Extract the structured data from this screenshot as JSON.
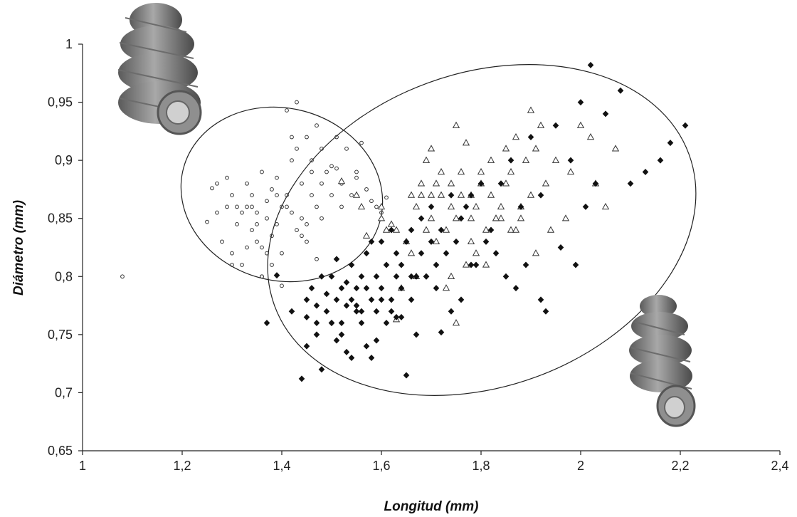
{
  "chart_data": {
    "type": "scatter",
    "title": "",
    "xlabel": "Longitud (mm)",
    "ylabel": "Diámetro (mm)",
    "xlim": [
      1,
      2.4
    ],
    "ylim": [
      0.65,
      1.0
    ],
    "xticks": [
      "1",
      "1,2",
      "1,4",
      "1,6",
      "1,8",
      "2",
      "2,2",
      "2,4"
    ],
    "yticks": [
      "0,65",
      "0,7",
      "0,75",
      "0,8",
      "0,85",
      "0,9",
      "0,95",
      "1"
    ],
    "grid": false,
    "legend": "none",
    "decorations": [
      "snail-shell-photo-top-left",
      "snail-shell-photo-bottom-right"
    ],
    "marker_colors": {
      "circle": "#333333",
      "triangle": "#333333",
      "diamond": "#111111"
    },
    "series": [
      {
        "marker": "circle",
        "x": [
          1.08,
          1.25,
          1.26,
          1.27,
          1.28,
          1.29,
          1.3,
          1.3,
          1.31,
          1.32,
          1.33,
          1.33,
          1.34,
          1.34,
          1.35,
          1.35,
          1.36,
          1.36,
          1.37,
          1.37,
          1.38,
          1.38,
          1.39,
          1.39,
          1.4,
          1.4,
          1.41,
          1.41,
          1.42,
          1.42,
          1.43,
          1.43,
          1.44,
          1.44,
          1.45,
          1.45,
          1.46,
          1.46,
          1.47,
          1.47,
          1.48,
          1.48,
          1.49,
          1.5,
          1.5,
          1.51,
          1.51,
          1.52,
          1.53,
          1.54,
          1.55,
          1.56,
          1.57,
          1.58,
          1.59,
          1.6,
          1.61,
          1.3,
          1.33,
          1.36,
          1.39,
          1.42,
          1.45,
          1.48,
          1.27,
          1.32,
          1.37,
          1.43,
          1.46,
          1.4,
          1.34,
          1.41,
          1.38,
          1.44,
          1.36,
          1.31,
          1.29,
          1.35,
          1.47,
          1.52,
          1.55
        ],
        "y": [
          0.8,
          0.847,
          0.876,
          0.855,
          0.83,
          0.86,
          0.82,
          0.87,
          0.845,
          0.81,
          0.86,
          0.88,
          0.84,
          0.87,
          0.855,
          0.83,
          0.89,
          0.825,
          0.865,
          0.85,
          0.875,
          0.835,
          0.845,
          0.885,
          0.86,
          0.82,
          0.943,
          0.87,
          0.855,
          0.9,
          0.91,
          0.84,
          0.88,
          0.85,
          0.845,
          0.92,
          0.87,
          0.9,
          0.86,
          0.93,
          0.88,
          0.91,
          0.89,
          0.895,
          0.87,
          0.92,
          0.893,
          0.86,
          0.91,
          0.87,
          0.885,
          0.915,
          0.875,
          0.865,
          0.86,
          0.855,
          0.868,
          0.81,
          0.825,
          0.8,
          0.87,
          0.92,
          0.83,
          0.85,
          0.88,
          0.855,
          0.82,
          0.95,
          0.89,
          0.792,
          0.86,
          0.86,
          0.81,
          0.835,
          0.8,
          0.86,
          0.885,
          0.845,
          0.815,
          0.88,
          0.89
        ]
      },
      {
        "marker": "triangle",
        "x": [
          1.52,
          1.55,
          1.57,
          1.6,
          1.6,
          1.62,
          1.63,
          1.65,
          1.66,
          1.67,
          1.68,
          1.69,
          1.7,
          1.7,
          1.71,
          1.72,
          1.72,
          1.73,
          1.74,
          1.74,
          1.75,
          1.75,
          1.76,
          1.76,
          1.77,
          1.78,
          1.78,
          1.79,
          1.8,
          1.8,
          1.81,
          1.82,
          1.82,
          1.83,
          1.84,
          1.85,
          1.85,
          1.86,
          1.86,
          1.87,
          1.88,
          1.88,
          1.89,
          1.9,
          1.9,
          1.91,
          1.92,
          1.93,
          1.94,
          1.95,
          1.97,
          1.98,
          2.0,
          2.02,
          2.03,
          2.05,
          2.07,
          1.56,
          1.64,
          1.69,
          1.73,
          1.78,
          1.81,
          1.84,
          1.87,
          1.91,
          1.63,
          1.67,
          1.71,
          1.75,
          1.79,
          1.83,
          1.7,
          1.66,
          1.74,
          1.77,
          1.61,
          1.68
        ],
        "y": [
          0.882,
          0.87,
          0.835,
          0.86,
          0.85,
          0.845,
          0.84,
          0.83,
          0.87,
          0.86,
          0.88,
          0.9,
          0.91,
          0.85,
          0.88,
          0.87,
          0.89,
          0.84,
          0.86,
          0.88,
          0.93,
          0.85,
          0.87,
          0.89,
          0.915,
          0.87,
          0.85,
          0.86,
          0.89,
          0.88,
          0.84,
          0.87,
          0.9,
          0.85,
          0.86,
          0.88,
          0.91,
          0.84,
          0.89,
          0.92,
          0.86,
          0.85,
          0.9,
          0.87,
          0.943,
          0.91,
          0.93,
          0.88,
          0.84,
          0.9,
          0.85,
          0.89,
          0.93,
          0.92,
          0.88,
          0.86,
          0.91,
          0.86,
          0.79,
          0.84,
          0.79,
          0.83,
          0.81,
          0.85,
          0.84,
          0.82,
          0.763,
          0.8,
          0.83,
          0.76,
          0.82,
          0.85,
          0.87,
          0.82,
          0.8,
          0.81,
          0.84,
          0.87
        ]
      },
      {
        "marker": "diamond",
        "x": [
          1.37,
          1.39,
          1.42,
          1.44,
          1.45,
          1.45,
          1.46,
          1.47,
          1.47,
          1.48,
          1.49,
          1.49,
          1.5,
          1.5,
          1.51,
          1.51,
          1.52,
          1.52,
          1.53,
          1.53,
          1.54,
          1.54,
          1.55,
          1.55,
          1.56,
          1.56,
          1.57,
          1.57,
          1.58,
          1.58,
          1.59,
          1.59,
          1.6,
          1.6,
          1.61,
          1.62,
          1.62,
          1.63,
          1.63,
          1.64,
          1.64,
          1.65,
          1.66,
          1.66,
          1.67,
          1.68,
          1.68,
          1.69,
          1.7,
          1.7,
          1.71,
          1.72,
          1.73,
          1.74,
          1.75,
          1.76,
          1.77,
          1.78,
          1.8,
          1.82,
          1.84,
          1.86,
          1.88,
          1.9,
          1.92,
          1.95,
          1.98,
          2.0,
          2.02,
          2.05,
          2.08,
          2.1,
          2.13,
          2.16,
          2.18,
          2.21,
          1.45,
          1.48,
          1.52,
          1.57,
          1.61,
          1.65,
          1.72,
          1.78,
          1.85,
          1.92,
          1.55,
          1.58,
          1.63,
          1.67,
          1.74,
          1.81,
          1.87,
          1.93,
          1.99,
          2.03,
          1.5,
          1.53,
          1.56,
          1.6,
          1.64,
          1.69,
          1.76,
          1.83,
          1.89,
          1.96,
          2.01,
          1.47,
          1.51,
          1.54,
          1.59,
          1.62,
          1.66,
          1.71,
          1.79
        ],
        "y": [
          0.76,
          0.801,
          0.77,
          0.712,
          0.78,
          0.765,
          0.79,
          0.76,
          0.775,
          0.8,
          0.77,
          0.785,
          0.76,
          0.8,
          0.78,
          0.815,
          0.76,
          0.79,
          0.775,
          0.795,
          0.78,
          0.81,
          0.77,
          0.79,
          0.76,
          0.8,
          0.79,
          0.82,
          0.78,
          0.83,
          0.8,
          0.77,
          0.79,
          0.83,
          0.81,
          0.77,
          0.84,
          0.8,
          0.82,
          0.79,
          0.81,
          0.83,
          0.78,
          0.84,
          0.8,
          0.82,
          0.85,
          0.8,
          0.83,
          0.86,
          0.81,
          0.84,
          0.82,
          0.87,
          0.83,
          0.85,
          0.86,
          0.87,
          0.88,
          0.84,
          0.88,
          0.9,
          0.86,
          0.92,
          0.87,
          0.93,
          0.9,
          0.95,
          0.982,
          0.94,
          0.96,
          0.88,
          0.89,
          0.9,
          0.915,
          0.93,
          0.74,
          0.72,
          0.75,
          0.74,
          0.76,
          0.715,
          0.752,
          0.81,
          0.8,
          0.78,
          0.775,
          0.73,
          0.765,
          0.75,
          0.77,
          0.83,
          0.79,
          0.77,
          0.81,
          0.88,
          0.76,
          0.735,
          0.77,
          0.78,
          0.765,
          0.8,
          0.78,
          0.82,
          0.81,
          0.825,
          0.86,
          0.75,
          0.745,
          0.73,
          0.745,
          0.78,
          0.8,
          0.79,
          0.81
        ]
      }
    ]
  }
}
